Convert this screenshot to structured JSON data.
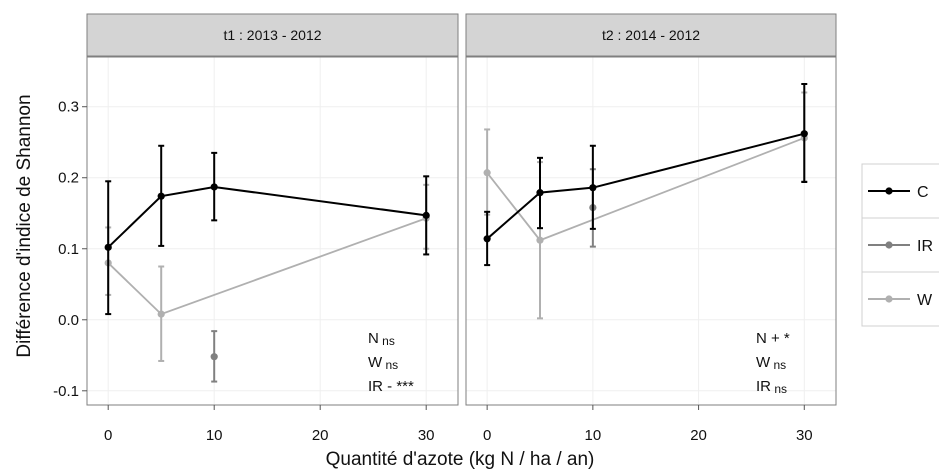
{
  "chart_data": {
    "type": "line",
    "ylabel": "Différence d'indice de Shannon",
    "xlabel": "Quantité d'azote (kg N / ha / an)",
    "xlim": [
      -2,
      33
    ],
    "ylim": [
      -0.12,
      0.37
    ],
    "xticks": [
      0,
      10,
      20,
      30
    ],
    "yticks": [
      -0.1,
      0.0,
      0.1,
      0.2,
      0.3
    ],
    "ytick_labels": [
      "-0.1",
      "0.0",
      "0.1",
      "0.2",
      "0.3"
    ],
    "grid": true,
    "legend": {
      "position": "right",
      "entries": [
        {
          "label": "C",
          "color": "#000000"
        },
        {
          "label": "IR",
          "color": "#808080"
        },
        {
          "label": "W",
          "color": "#b0b0b0"
        }
      ]
    },
    "panels": [
      {
        "title": "t1 : 2013 - 2012",
        "annotations": [
          {
            "main": "N",
            "sub": "ns"
          },
          {
            "main": "W",
            "sub": "ns"
          },
          {
            "main": "IR - ***",
            "sub": ""
          }
        ],
        "series": [
          {
            "name": "C",
            "color": "#000000",
            "points": [
              {
                "x": 0,
                "y": 0.102,
                "lo": 0.008,
                "hi": 0.195
              },
              {
                "x": 5,
                "y": 0.174,
                "lo": 0.104,
                "hi": 0.245
              },
              {
                "x": 10,
                "y": 0.187,
                "lo": 0.14,
                "hi": 0.235
              },
              {
                "x": 30,
                "y": 0.147,
                "lo": 0.092,
                "hi": 0.202
              }
            ]
          },
          {
            "name": "IR",
            "color": "#808080",
            "points": [
              {
                "x": 10,
                "y": -0.052,
                "lo": -0.087,
                "hi": -0.016
              }
            ]
          },
          {
            "name": "W",
            "color": "#b0b0b0",
            "points": [
              {
                "x": 0,
                "y": 0.08,
                "lo": 0.035,
                "hi": 0.13
              },
              {
                "x": 5,
                "y": 0.008,
                "lo": -0.058,
                "hi": 0.075
              },
              {
                "x": 30,
                "y": 0.143,
                "lo": 0.1,
                "hi": 0.19
              }
            ]
          }
        ]
      },
      {
        "title": "t2 : 2014 - 2012",
        "annotations": [
          {
            "main": "N + *",
            "sub": ""
          },
          {
            "main": "W",
            "sub": "ns"
          },
          {
            "main": "IR",
            "sub": "ns"
          }
        ],
        "series": [
          {
            "name": "C",
            "color": "#000000",
            "points": [
              {
                "x": 0,
                "y": 0.114,
                "lo": 0.077,
                "hi": 0.152
              },
              {
                "x": 5,
                "y": 0.179,
                "lo": 0.129,
                "hi": 0.228
              },
              {
                "x": 10,
                "y": 0.186,
                "lo": 0.128,
                "hi": 0.245
              },
              {
                "x": 30,
                "y": 0.262,
                "lo": 0.194,
                "hi": 0.332
              }
            ]
          },
          {
            "name": "IR",
            "color": "#808080",
            "points": [
              {
                "x": 10,
                "y": 0.158,
                "lo": 0.103,
                "hi": 0.212
              }
            ]
          },
          {
            "name": "W",
            "color": "#b0b0b0",
            "points": [
              {
                "x": 0,
                "y": 0.207,
                "lo": 0.148,
                "hi": 0.268
              },
              {
                "x": 5,
                "y": 0.112,
                "lo": 0.002,
                "hi": 0.222
              },
              {
                "x": 30,
                "y": 0.256,
                "lo": 0.195,
                "hi": 0.32
              }
            ]
          }
        ]
      }
    ]
  }
}
